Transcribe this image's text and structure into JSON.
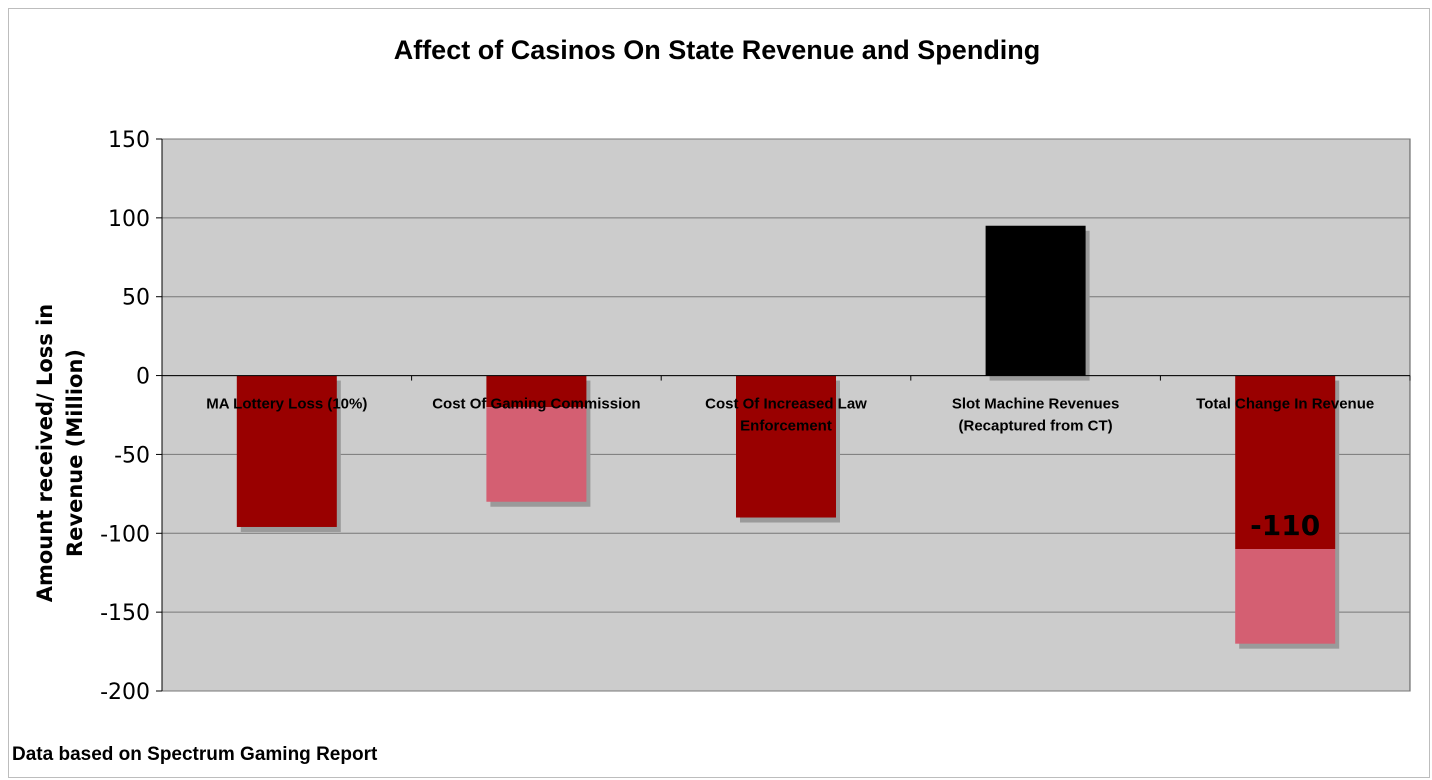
{
  "chart_data": {
    "type": "bar",
    "title": "Affect of Casinos On State Revenue and Spending",
    "ylabel_lines": [
      "Amount received/ Loss in",
      "Revenue (Million)"
    ],
    "xlabel": "",
    "ylim": [
      -200,
      150
    ],
    "yticks": [
      150,
      100,
      50,
      0,
      -50,
      -100,
      -150,
      -200
    ],
    "grid": true,
    "legend": "none",
    "categories": [
      [
        "MA Lottery Loss (10%)"
      ],
      [
        "Cost Of Gaming Commission"
      ],
      [
        "Cost Of Increased Law",
        "Enforcement"
      ],
      [
        "Slot Machine Revenues",
        "(Recaptured from CT)"
      ],
      [
        "Total Change In Revenue"
      ]
    ],
    "segments": [
      {
        "category": 0,
        "from": 0,
        "to": -96,
        "color": "#990000"
      },
      {
        "category": 1,
        "from": 0,
        "to": -20,
        "color": "#990000"
      },
      {
        "category": 1,
        "from": -20,
        "to": -80,
        "color": "#d45f72"
      },
      {
        "category": 2,
        "from": 0,
        "to": -90,
        "color": "#990000"
      },
      {
        "category": 3,
        "from": 0,
        "to": 95,
        "color": "#000000"
      },
      {
        "category": 4,
        "from": 0,
        "to": -110,
        "color": "#990000"
      },
      {
        "category": 4,
        "from": -110,
        "to": -170,
        "color": "#d45f72"
      }
    ],
    "data_labels": [
      {
        "category": 4,
        "value": -110,
        "text": "-110"
      }
    ],
    "footnote": "Data based on Spectrum Gaming Report",
    "colors": {
      "plot_background": "#cccccc",
      "gridline": "#777777",
      "shadow": "#9a9a9a"
    }
  }
}
